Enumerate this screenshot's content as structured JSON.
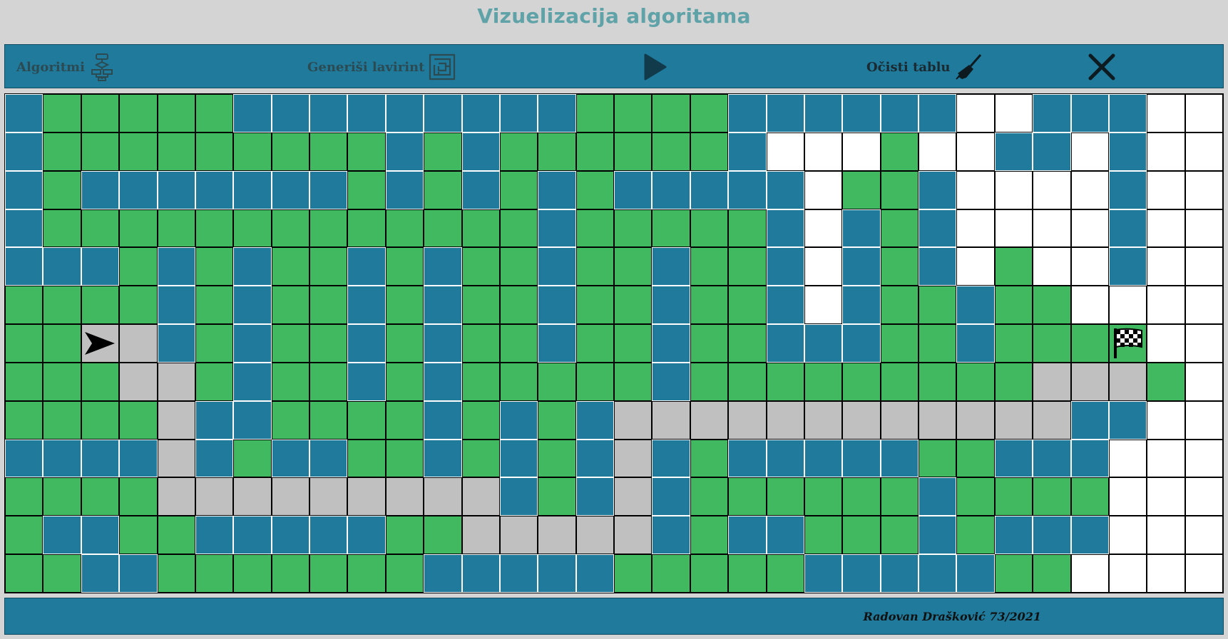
{
  "header": {
    "title": "Vizuelizacija algoritama"
  },
  "toolbar": {
    "algorithms_label": "Algoritmi",
    "algorithms_icon": "flowchart-icon",
    "generate_label": "Generiši lavirint",
    "generate_icon": "maze-icon",
    "play_icon": "play-icon",
    "clear_label": "Očisti tablu",
    "clear_icon": "broom-icon",
    "close_icon": "close-icon"
  },
  "colors": {
    "wall": "#1f7a9c",
    "visited": "#40b960",
    "empty": "#ffffff",
    "path": "#c0c0c0"
  },
  "grid": {
    "rows": 13,
    "cols": 32,
    "legend": {
      "W": "wall",
      "G": "visited",
      "E": "empty",
      "P": "path"
    },
    "cells": [
      "WGGGGGWWWWWWWWWGGGGWWWWWWEEWWWEE",
      "WGGGGGGGGGWGWGGGGGGWEEEGEEWWEWEE",
      "WGWWWWWWWGWGWGWGWWWWWEGGWEEEEWEE",
      "WGGGGGGGGGGGGGWGGGGGWEWGWEEEEWEE",
      "WWWGWGWGGWGWGGWGGWGGWEWGWEGEEWEE",
      "GGGGWGWGGWGWGGWGGWGGWEWGGWGGEEEE",
      "GGPPWGWGGWGWGGWGGWGGWWWGGWGGGGEE",
      "GGGPPGWGGWGWGGGGGWGGGGGGGGGPPPGE",
      "GGGGPWWGGGGWGWGWPPPPPPPPPPPPWWEE",
      "WWWWPWGWWGGWGWGWPWGWWWWWGGWWWEEE",
      "GGGGPPPPPPPPPWGWPWGGGGGGWGGGGEEE",
      "GWWGGWWWWWGGPPPPPWGWWGGGWGWWWEEE",
      "GGWWGGGGGGGWWWWWGGGGGWWWWWGGEEEE"
    ],
    "start": {
      "row": 6,
      "col": 2
    },
    "finish": {
      "row": 6,
      "col": 29
    },
    "start_icon": "start-arrow-icon",
    "finish_icon": "checkered-flag-icon"
  },
  "footer": {
    "credit": "Radovan Drašković 73/2021"
  }
}
